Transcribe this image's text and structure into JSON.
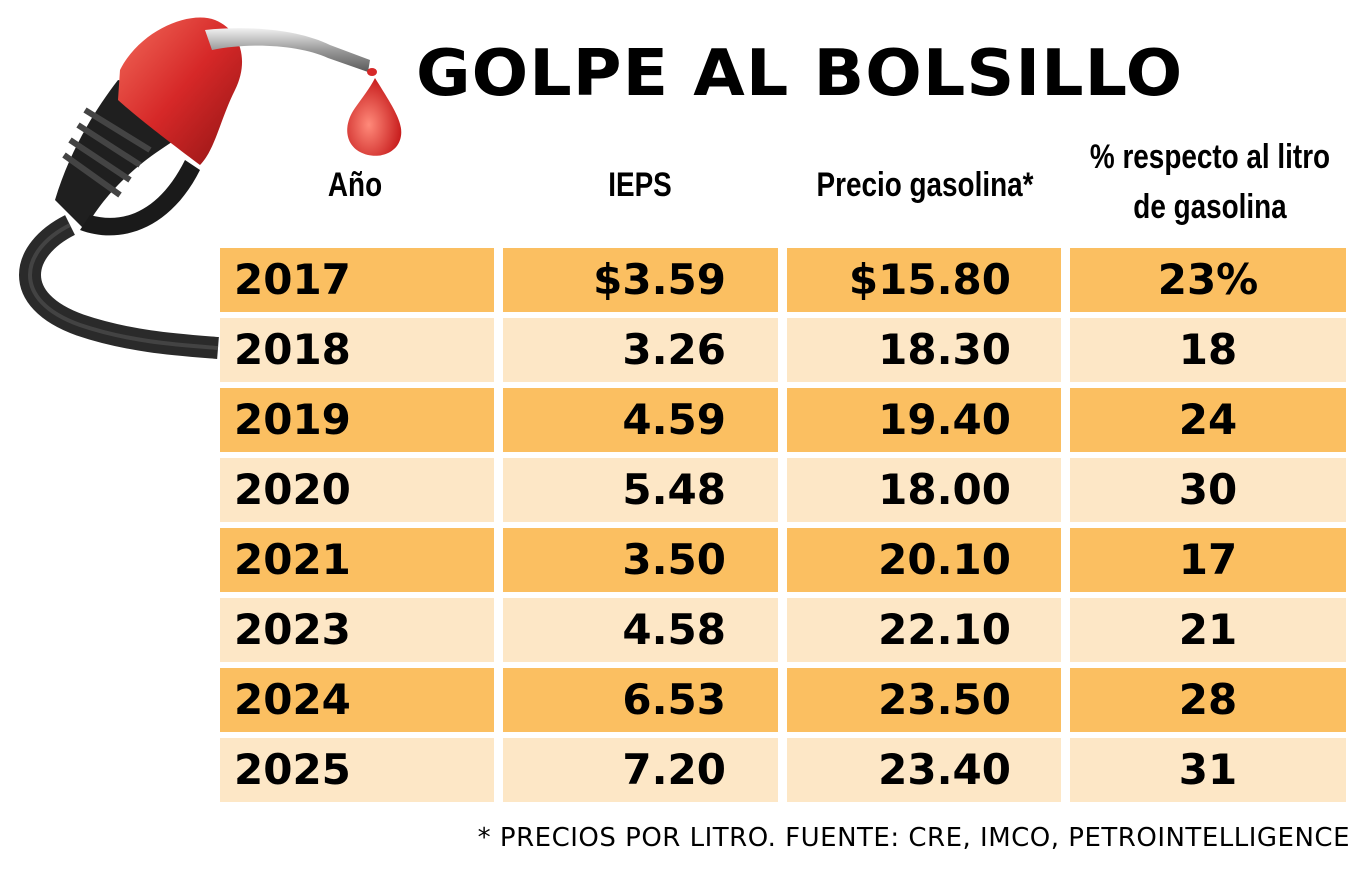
{
  "title": "GOLPE AL BOLSILLO",
  "colors": {
    "row_dark": "#fbbf61",
    "row_light": "#fde7c6",
    "nozzle_red": "#d62828",
    "hose_black": "#2a2a2a"
  },
  "illustration": {
    "icon": "fuel-nozzle-icon"
  },
  "headers": {
    "year": "Año",
    "ieps": "IEPS",
    "price": "Precio gasolina*",
    "pct_line1": "% respecto al litro",
    "pct_line2": "de gasolina"
  },
  "chart_data": {
    "type": "table",
    "title": "GOLPE AL BOLSILLO",
    "columns": [
      "Año",
      "IEPS",
      "Precio gasolina*",
      "% respecto al litro de gasolina"
    ],
    "rows": [
      {
        "year": "2017",
        "ieps": "$3.59",
        "price": "$15.80",
        "pct": "23%"
      },
      {
        "year": "2018",
        "ieps": "3.26",
        "price": "18.30",
        "pct": "18"
      },
      {
        "year": "2019",
        "ieps": "4.59",
        "price": "19.40",
        "pct": "24"
      },
      {
        "year": "2020",
        "ieps": "5.48",
        "price": "18.00",
        "pct": "30"
      },
      {
        "year": "2021",
        "ieps": "3.50",
        "price": "20.10",
        "pct": "17"
      },
      {
        "year": "2023",
        "ieps": "4.58",
        "price": "22.10",
        "pct": "21"
      },
      {
        "year": "2024",
        "ieps": "6.53",
        "price": "23.50",
        "pct": "28"
      },
      {
        "year": "2025",
        "ieps": "7.20",
        "price": "23.40",
        "pct": "31"
      }
    ],
    "footnote": "* PRECIOS POR LITRO. FUENTE: CRE, IMCO, PETROINTELLIGENCE"
  }
}
